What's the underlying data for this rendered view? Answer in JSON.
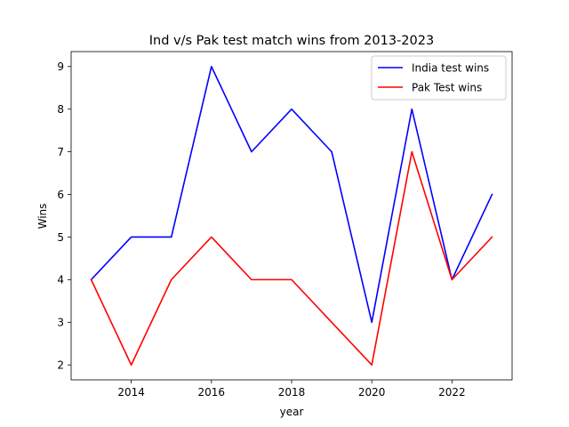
{
  "chart_data": {
    "type": "line",
    "title": "Ind v/s Pak test match wins from 2013-2023",
    "xlabel": "year",
    "ylabel": "Wins",
    "x": [
      2013,
      2014,
      2015,
      2016,
      2017,
      2018,
      2019,
      2020,
      2021,
      2022,
      2023
    ],
    "series": [
      {
        "name": "India test wins",
        "color": "#0000ff",
        "values": [
          4,
          5,
          5,
          9,
          7,
          8,
          7,
          3,
          8,
          4,
          6
        ]
      },
      {
        "name": "Pak Test wins",
        "color": "#ff0000",
        "values": [
          4,
          2,
          4,
          5,
          4,
          4,
          3,
          2,
          7,
          4,
          5
        ]
      }
    ],
    "xlim": [
      2012.5,
      2023.5
    ],
    "ylim": [
      1.65,
      9.35
    ],
    "xticks": [
      2014,
      2016,
      2018,
      2020,
      2022
    ],
    "yticks": [
      2,
      3,
      4,
      5,
      6,
      7,
      8,
      9
    ],
    "grid": false,
    "legend_position": "top-right"
  }
}
